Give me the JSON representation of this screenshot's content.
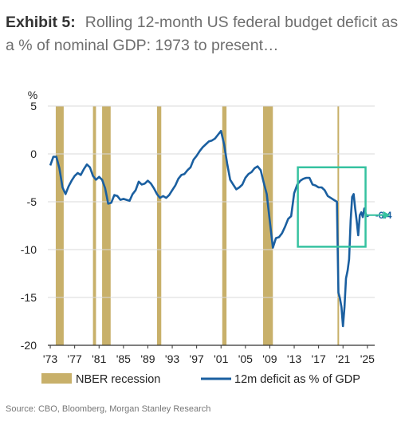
{
  "exhibit_label": "Exhibit 5:",
  "exhibit_title": "Rolling 12-month US federal budget deficit as a % of nominal GDP: 1973 to present…",
  "source": "Source: CBO, Bloomberg, Morgan Stanley Research",
  "colors": {
    "line": "#1a5fa0",
    "recession": "#c8b06a",
    "highlight": "#36c2a0",
    "grid": "#d9d9d9"
  },
  "chart_data": {
    "type": "line",
    "ylabel": "%",
    "ylim": [
      -20,
      5
    ],
    "yticks": [
      5,
      0,
      -5,
      -10,
      -15,
      -20
    ],
    "xlim": [
      1972.6,
      2026.2
    ],
    "xticks": [
      {
        "year": 1973,
        "label": "'73"
      },
      {
        "year": 1977,
        "label": "'77"
      },
      {
        "year": 1981,
        "label": "'81"
      },
      {
        "year": 1985,
        "label": "'85"
      },
      {
        "year": 1989,
        "label": "'89"
      },
      {
        "year": 1993,
        "label": "'93"
      },
      {
        "year": 1997,
        "label": "'97"
      },
      {
        "year": 2001,
        "label": "'01"
      },
      {
        "year": 2005,
        "label": "'05"
      },
      {
        "year": 2009,
        "label": "'09"
      },
      {
        "year": 2013,
        "label": "'13"
      },
      {
        "year": 2017,
        "label": "'17"
      },
      {
        "year": 2021,
        "label": "'21"
      },
      {
        "year": 2025,
        "label": "'25"
      }
    ],
    "grid": "horizontal",
    "legend": {
      "position": "bottom",
      "items": [
        "NBER recession",
        "12m deficit as % of GDP"
      ]
    },
    "recessions": [
      [
        1973.9,
        1975.2
      ],
      [
        1980.0,
        1980.5
      ],
      [
        1981.5,
        1982.9
      ],
      [
        1990.5,
        1991.2
      ],
      [
        2001.2,
        2001.9
      ],
      [
        2007.9,
        2009.5
      ],
      [
        2020.1,
        2020.3
      ]
    ],
    "series": [
      {
        "name": "12m deficit as % of GDP",
        "x": [
          1973.0,
          1973.5,
          1974.0,
          1974.5,
          1975.0,
          1975.5,
          1976.0,
          1976.5,
          1977.0,
          1977.5,
          1978.0,
          1978.5,
          1979.0,
          1979.5,
          1980.0,
          1980.5,
          1981.0,
          1981.5,
          1982.0,
          1982.5,
          1983.0,
          1983.5,
          1984.0,
          1984.5,
          1985.0,
          1985.5,
          1986.0,
          1986.5,
          1987.0,
          1987.5,
          1988.0,
          1988.5,
          1989.0,
          1989.5,
          1990.0,
          1990.5,
          1991.0,
          1991.5,
          1992.0,
          1992.5,
          1993.0,
          1993.5,
          1994.0,
          1994.5,
          1995.0,
          1995.5,
          1996.0,
          1996.5,
          1997.0,
          1997.5,
          1998.0,
          1998.5,
          1999.0,
          1999.5,
          2000.0,
          2000.5,
          2001.0,
          2001.5,
          2002.0,
          2002.5,
          2003.0,
          2003.5,
          2004.0,
          2004.5,
          2005.0,
          2005.5,
          2006.0,
          2006.5,
          2007.0,
          2007.5,
          2008.0,
          2008.5,
          2009.0,
          2009.5,
          2010.0,
          2010.5,
          2011.0,
          2011.5,
          2012.0,
          2012.5,
          2013.0,
          2013.5,
          2014.0,
          2014.5,
          2015.0,
          2015.5,
          2016.0,
          2016.5,
          2017.0,
          2017.5,
          2018.0,
          2018.5,
          2019.0,
          2019.5,
          2020.0,
          2020.25,
          2020.5,
          2020.75,
          2021.0,
          2021.25,
          2021.5,
          2021.75,
          2022.0,
          2022.25,
          2022.5,
          2022.75,
          2023.0,
          2023.25,
          2023.5,
          2023.75,
          2024.0,
          2024.25,
          2024.5,
          2024.75,
          2025.0,
          2025.25
        ],
        "values": [
          -1.2,
          -0.3,
          -0.3,
          -1.5,
          -3.5,
          -4.2,
          -3.4,
          -2.8,
          -2.3,
          -2.0,
          -2.2,
          -1.6,
          -1.1,
          -1.4,
          -2.3,
          -2.7,
          -2.4,
          -2.7,
          -3.6,
          -5.2,
          -5.1,
          -4.3,
          -4.4,
          -4.8,
          -4.7,
          -4.8,
          -4.9,
          -4.2,
          -3.8,
          -2.9,
          -3.2,
          -3.1,
          -2.8,
          -3.1,
          -3.6,
          -4.2,
          -4.6,
          -4.4,
          -4.6,
          -4.3,
          -3.8,
          -3.3,
          -2.6,
          -2.2,
          -2.1,
          -1.7,
          -1.4,
          -0.6,
          -0.2,
          0.3,
          0.7,
          1.0,
          1.3,
          1.4,
          1.6,
          2.0,
          2.4,
          1.0,
          -1.0,
          -2.7,
          -3.2,
          -3.7,
          -3.5,
          -3.2,
          -2.5,
          -2.1,
          -1.9,
          -1.5,
          -1.3,
          -1.7,
          -3.0,
          -4.2,
          -7.0,
          -9.8,
          -8.8,
          -8.7,
          -8.3,
          -7.6,
          -6.8,
          -6.5,
          -4.1,
          -3.2,
          -2.8,
          -2.6,
          -2.5,
          -2.5,
          -3.2,
          -3.3,
          -3.5,
          -3.5,
          -3.8,
          -4.4,
          -4.6,
          -4.8,
          -5.0,
          -14.5,
          -15.1,
          -16.0,
          -18.0,
          -16.0,
          -13.0,
          -12.2,
          -11.0,
          -7.0,
          -4.5,
          -4.2,
          -5.7,
          -7.0,
          -8.5,
          -6.4,
          -6.1,
          -6.6,
          -5.7,
          -6.3,
          -6.5,
          -6.4
        ]
      }
    ],
    "annotations": [
      {
        "type": "box",
        "x": [
          2013.6,
          2024.7
        ],
        "y": [
          -9.7,
          -1.4
        ]
      },
      {
        "type": "label",
        "text": "-6.4",
        "x": 2025.25,
        "y": -6.4
      }
    ]
  }
}
